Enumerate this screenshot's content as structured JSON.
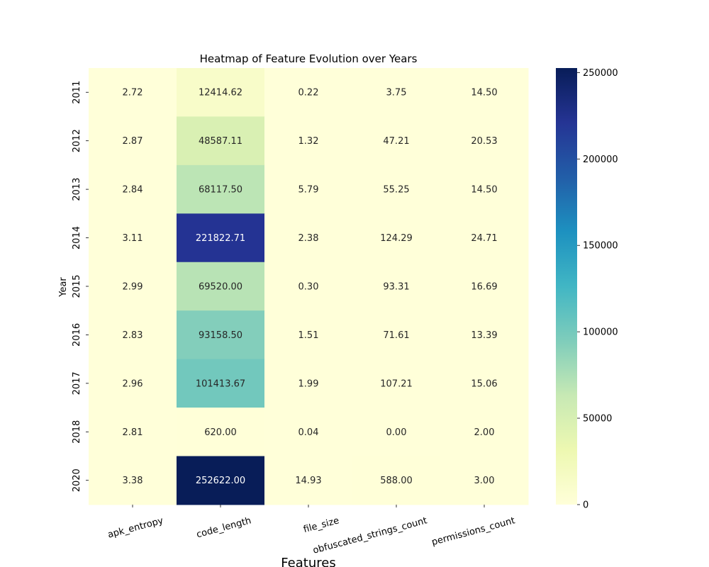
{
  "chart_data": {
    "type": "heatmap",
    "title": "Heatmap of Feature Evolution over Years",
    "xlabel": "Features",
    "ylabel": "Year",
    "x_categories": [
      "apk_entropy",
      "code_length",
      "file_size",
      "obfuscated_strings_count",
      "permissions_count"
    ],
    "y_categories": [
      "2011",
      "2012",
      "2013",
      "2014",
      "2015",
      "2016",
      "2017",
      "2018",
      "2020"
    ],
    "values": [
      [
        2.72,
        12414.62,
        0.22,
        3.75,
        14.5
      ],
      [
        2.87,
        48587.11,
        1.32,
        47.21,
        20.53
      ],
      [
        2.84,
        68117.5,
        5.79,
        55.25,
        14.5
      ],
      [
        3.11,
        221822.71,
        2.38,
        124.29,
        24.71
      ],
      [
        2.99,
        69520.0,
        0.3,
        93.31,
        16.69
      ],
      [
        2.83,
        93158.5,
        1.51,
        71.61,
        13.39
      ],
      [
        2.96,
        101413.67,
        1.99,
        107.21,
        15.06
      ],
      [
        2.81,
        620.0,
        0.04,
        0.0,
        2.0
      ],
      [
        3.38,
        252622.0,
        14.93,
        588.0,
        3.0
      ]
    ],
    "annotation_decimals": 2,
    "colormap": "YlGnBu",
    "colorbar": {
      "range": [
        0,
        252622.0
      ],
      "ticks": [
        0,
        50000,
        100000,
        150000,
        200000,
        250000
      ]
    },
    "grid": false
  }
}
